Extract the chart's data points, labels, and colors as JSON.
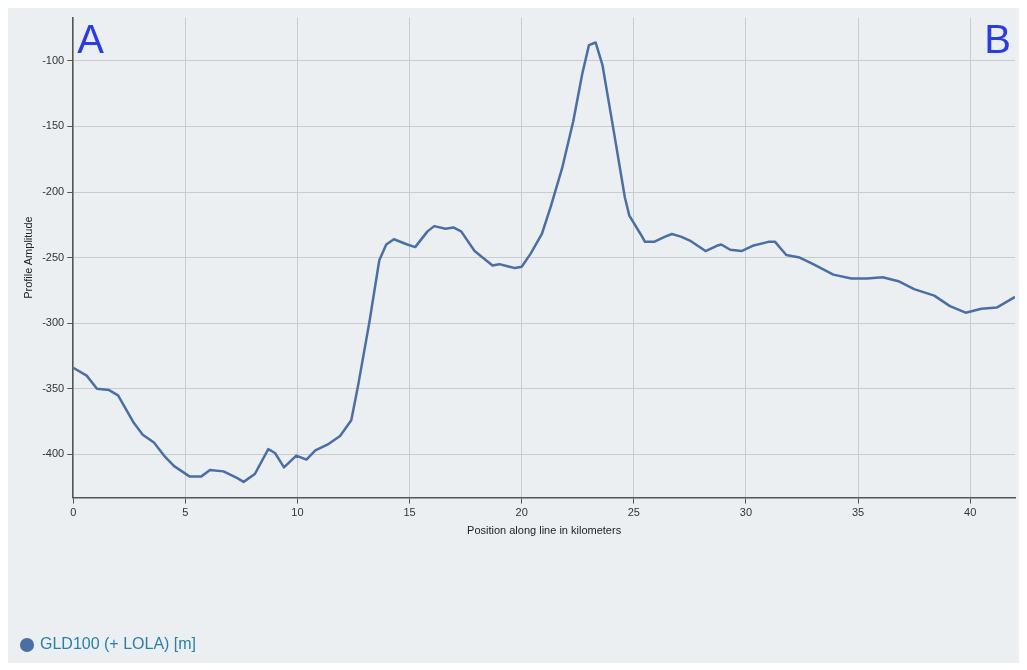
{
  "chart_data": {
    "type": "line",
    "xlabel": "Position along line in kilometers",
    "ylabel": "Profile Amplitude",
    "annotations": [
      "A",
      "B"
    ],
    "xlim": [
      0,
      42
    ],
    "xticks": [
      0,
      5,
      10,
      15,
      20,
      25,
      30,
      35,
      40
    ],
    "ylim": [
      -433,
      -67
    ],
    "yticks": [
      -400,
      -350,
      -300,
      -250,
      -200,
      -150,
      -100
    ],
    "grid": true,
    "legend": "bottom left",
    "marker": "none",
    "line_style": "solid",
    "series": [
      {
        "name": "GLD100 (+ LOLA) [m]",
        "color": "#4a6fa5",
        "x": [
          0,
          0.6,
          1.06,
          1.6,
          2.0,
          2.7,
          3.1,
          3.6,
          4.1,
          4.5,
          5.2,
          5.7,
          6.1,
          6.7,
          7.3,
          7.6,
          8.1,
          8.7,
          9.0,
          9.4,
          9.95,
          10.4,
          10.8,
          11.4,
          11.9,
          12.4,
          12.7,
          13.2,
          13.65,
          13.96,
          14.3,
          14.9,
          15.25,
          15.8,
          16.1,
          16.6,
          16.95,
          17.3,
          17.9,
          18.7,
          19.0,
          19.7,
          20.0,
          20.4,
          20.9,
          21.3,
          21.8,
          22.3,
          22.7,
          23.0,
          23.3,
          23.6,
          24.1,
          24.6,
          24.8,
          25.3,
          25.5,
          25.9,
          26.4,
          26.7,
          27.1,
          27.5,
          28.2,
          28.7,
          28.9,
          29.3,
          29.8,
          30.3,
          31.0,
          31.3,
          31.8,
          32.4,
          33.0,
          33.9,
          34.7,
          35.4,
          36.1,
          36.8,
          37.5,
          38.4,
          39.1,
          39.8,
          40.5,
          41.2,
          41.7,
          42
        ],
        "values": [
          -334,
          -340,
          -350,
          -351,
          -355,
          -376,
          -385,
          -391,
          -402,
          -409,
          -417,
          -417,
          -412,
          -413,
          -418,
          -421,
          -415,
          -396,
          -399,
          -410,
          -401,
          -404,
          -397,
          -392,
          -386,
          -374,
          -348,
          -300,
          -252,
          -240,
          -236,
          -240,
          -242,
          -230,
          -226,
          -228,
          -227,
          -230,
          -245,
          -256,
          -255,
          -258,
          -257,
          -247,
          -232,
          -211,
          -182,
          -146,
          -110,
          -88,
          -86,
          -103,
          -153,
          -204,
          -218,
          -232,
          -238,
          -238,
          -234,
          -232,
          -234,
          -237,
          -245,
          -241,
          -240,
          -244,
          -245,
          -241,
          -238,
          -238,
          -248,
          -250,
          -255,
          -263,
          -266,
          -266,
          -265,
          -268,
          -274,
          -279,
          -287,
          -292,
          -289,
          -288,
          -283,
          -280
        ]
      }
    ]
  }
}
